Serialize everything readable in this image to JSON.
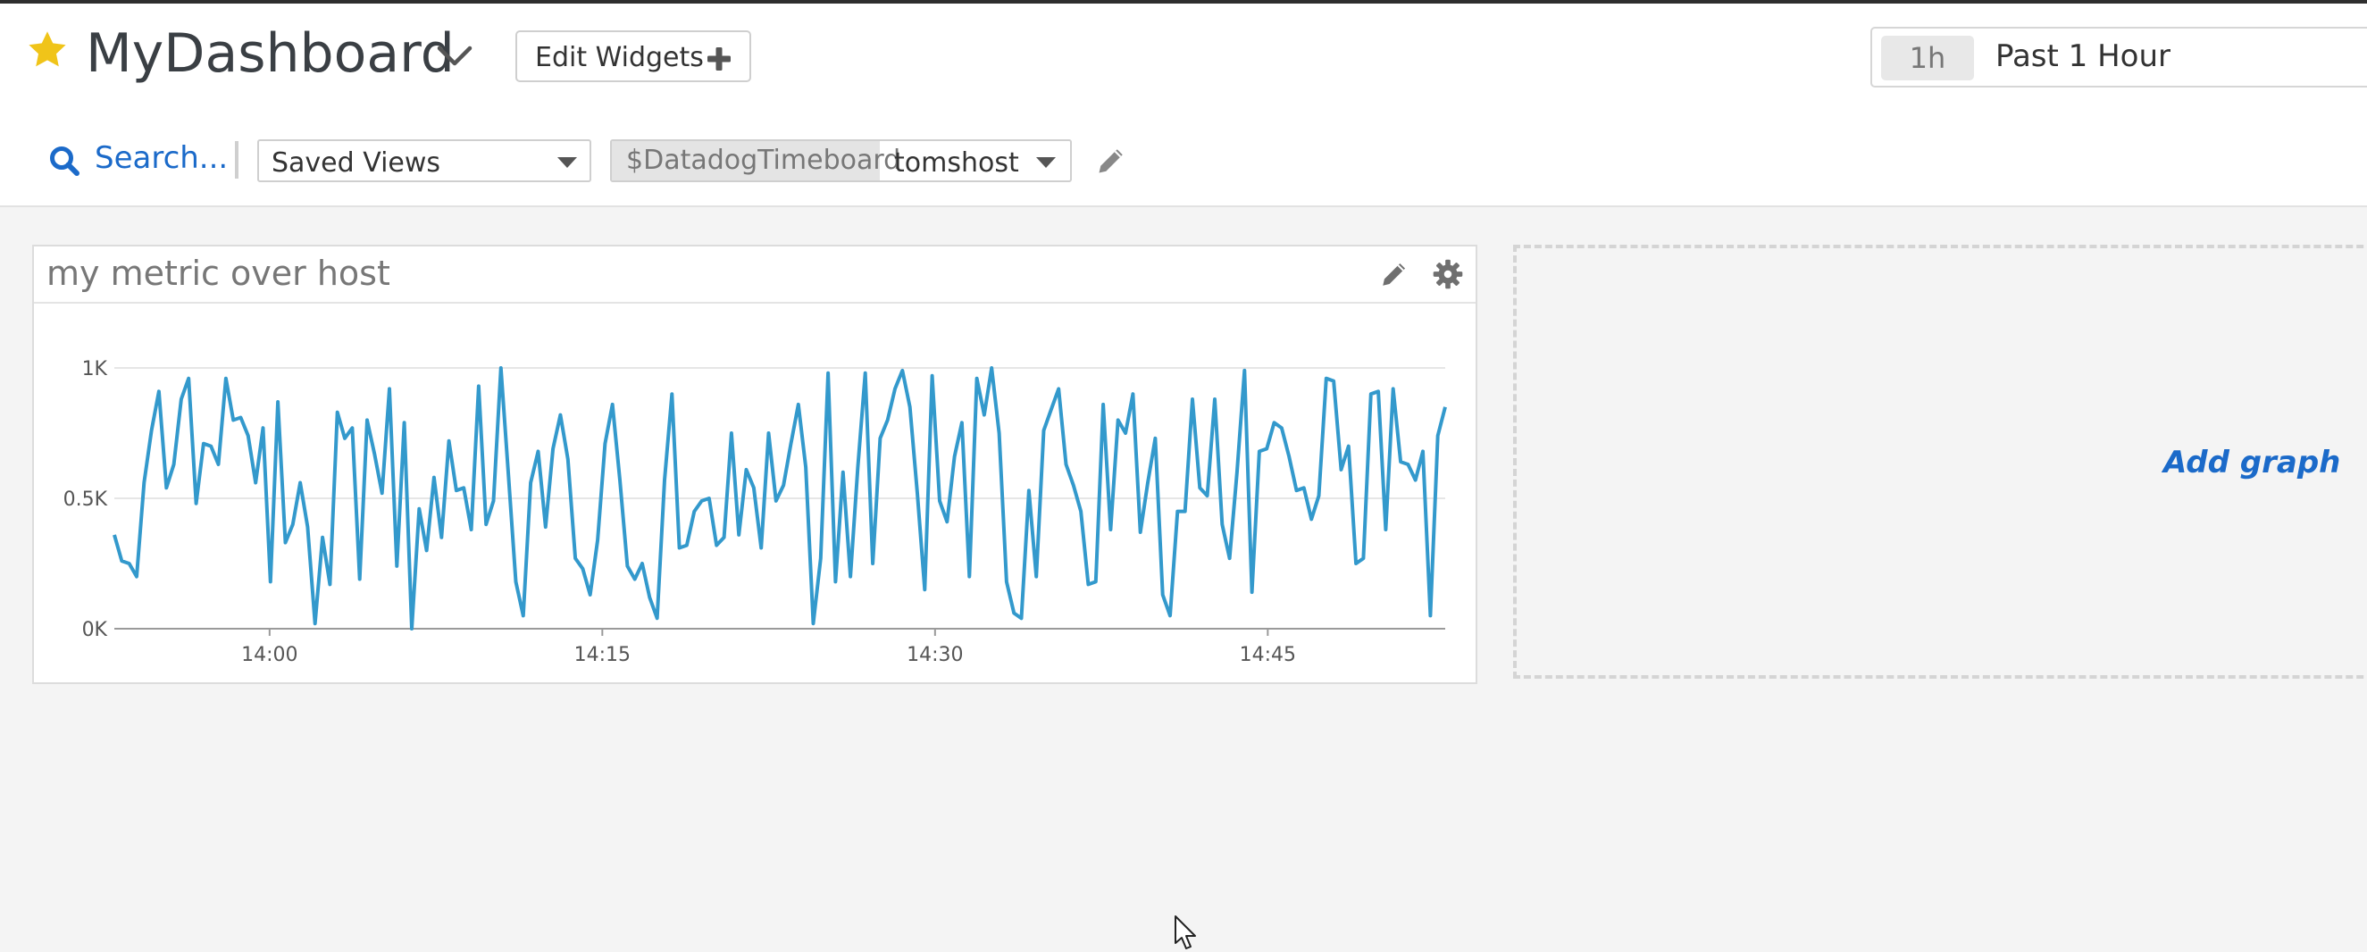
{
  "header": {
    "dashboard_title": "MyDashboard",
    "edit_widgets_label": "Edit Widgets",
    "timeframe": {
      "badge": "1h",
      "label": "Past 1 Hour"
    }
  },
  "toolbar": {
    "search_label": "Search...",
    "saved_views_label": "Saved Views",
    "template_variable": {
      "name": "$DatadogTimeboard",
      "value": "tomshost"
    }
  },
  "widgets": [
    {
      "title": "my metric over host",
      "chart_data": {
        "type": "line",
        "series": [
          {
            "values": [
              0.36,
              0.26,
              0.25,
              0.2,
              0.56,
              0.76,
              0.91,
              0.54,
              0.63,
              0.88,
              0.96,
              0.48,
              0.71,
              0.7,
              0.63,
              0.96,
              0.8,
              0.81,
              0.74,
              0.56,
              0.77,
              0.18,
              0.87,
              0.33,
              0.4,
              0.56,
              0.39,
              0.02,
              0.35,
              0.17,
              0.83,
              0.73,
              0.77,
              0.19,
              0.8,
              0.67,
              0.52,
              0.92,
              0.24,
              0.79,
              0.0,
              0.46,
              0.3,
              0.58,
              0.35,
              0.72,
              0.53,
              0.54,
              0.38,
              0.93,
              0.4,
              0.49,
              1.0,
              0.59,
              0.18,
              0.05,
              0.56,
              0.68,
              0.39,
              0.69,
              0.82,
              0.65,
              0.27,
              0.23,
              0.13,
              0.34,
              0.71,
              0.86,
              0.57,
              0.24,
              0.19,
              0.25,
              0.12,
              0.04,
              0.57,
              0.9,
              0.31,
              0.32,
              0.45,
              0.49,
              0.5,
              0.32,
              0.35,
              0.75,
              0.36,
              0.61,
              0.54,
              0.31,
              0.75,
              0.49,
              0.55,
              0.71,
              0.86,
              0.62,
              0.02,
              0.27,
              0.98,
              0.18,
              0.6,
              0.2,
              0.62,
              0.98,
              0.25,
              0.73,
              0.8,
              0.92,
              0.99,
              0.85,
              0.52,
              0.15,
              0.97,
              0.49,
              0.41,
              0.66,
              0.79,
              0.2,
              0.96,
              0.82,
              1.0,
              0.75,
              0.18,
              0.06,
              0.04,
              0.53,
              0.2,
              0.76,
              0.84,
              0.92,
              0.63,
              0.55,
              0.45,
              0.17,
              0.18,
              0.86,
              0.38,
              0.8,
              0.75,
              0.9,
              0.37,
              0.56,
              0.73,
              0.13,
              0.05,
              0.45,
              0.45,
              0.88,
              0.54,
              0.51,
              0.88,
              0.4,
              0.27,
              0.6,
              0.99,
              0.14,
              0.68,
              0.69,
              0.79,
              0.77,
              0.66,
              0.53,
              0.54,
              0.42,
              0.51,
              0.96,
              0.95,
              0.61,
              0.7,
              0.25,
              0.27,
              0.9,
              0.91,
              0.38,
              0.92,
              0.64,
              0.63,
              0.57,
              0.68,
              0.05,
              0.74,
              0.85
            ]
          }
        ],
        "x_ticks": [
          "14:00",
          "14:15",
          "14:30",
          "14:45"
        ],
        "y_ticks": [
          "0K",
          "0.5K",
          "1K"
        ],
        "ylim": [
          0,
          1000
        ],
        "x_range": [
          "13:53",
          "14:53"
        ],
        "grid": true,
        "line_color": "#3399cc"
      }
    }
  ],
  "add_graph_label": "Add graph",
  "colors": {
    "accent": "#1b6ac9",
    "star": "#f0c419",
    "line": "#3399cc"
  },
  "icons": [
    "star-icon",
    "chevron-down-icon",
    "plus-icon",
    "search-icon",
    "caret-down-icon",
    "pencil-icon",
    "gear-icon",
    "cursor-icon"
  ]
}
